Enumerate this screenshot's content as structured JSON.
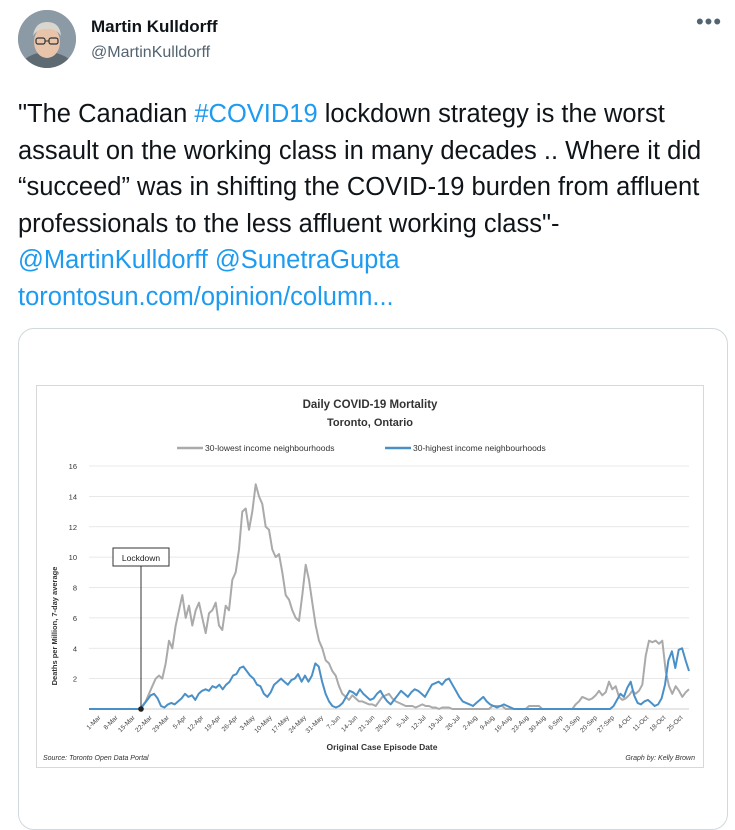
{
  "tweet": {
    "author_name": "Martin Kulldorff",
    "author_handle": "@MartinKulldorff",
    "more_icon": "more-horizontal-icon",
    "text": {
      "p1": "\"The Canadian ",
      "hashtag": "#COVID19",
      "p2": " lockdown strategy is the worst assault on the working class in many decades .. Where it did “succeed” was in shifting the COVID-19 burden from affluent professionals to the less affluent working class\"-",
      "mention1": "@MartinKulldorff",
      "mention2": "@SunetraGupta",
      "link": "torontosun.com/opinion/column..."
    }
  },
  "colors": {
    "link": "#1d9bf0",
    "lowest_series": "#aaaaaa",
    "highest_series": "#4a90c8"
  },
  "chart_data": {
    "type": "line",
    "title": "Daily COVID-19 Mortality",
    "subtitle": "Toronto, Ontario",
    "xlabel": "Original Case Episode Date",
    "ylabel": "Deaths per Million, 7-day average",
    "ylim": [
      0,
      16
    ],
    "yticks": [
      "16",
      "14",
      "12",
      "10",
      "8",
      "6",
      "4",
      "2"
    ],
    "xticks": [
      "1-Mar",
      "8-Mar",
      "15-Mar",
      "22-Mar",
      "29-Mar",
      "5-Apr",
      "12-Apr",
      "19-Apr",
      "26-Apr",
      "3-May",
      "10-May",
      "17-May",
      "24-May",
      "31-May",
      "7-Jun",
      "14-Jun",
      "21-Jun",
      "28-Jun",
      "5-Jul",
      "12-Jul",
      "19-Jul",
      "26-Jul",
      "2-Aug",
      "9-Aug",
      "16-Aug",
      "23-Aug",
      "30-Aug",
      "6-Sep",
      "13-Sep",
      "20-Sep",
      "27-Sep",
      "4-Oct",
      "11-Oct",
      "18-Oct",
      "25-Oct"
    ],
    "grid": true,
    "legend_position": "top",
    "series": [
      {
        "name": "30-lowest income neighbourhoods",
        "values": [
          0,
          0,
          0,
          0,
          0,
          0,
          0,
          0,
          0,
          0,
          0,
          0,
          0,
          0,
          0,
          0,
          0.2,
          0.5,
          1,
          1.5,
          2,
          2.2,
          2,
          3,
          4.5,
          4,
          5.5,
          6.5,
          7.5,
          6,
          6.8,
          5.5,
          6.5,
          7,
          6,
          5,
          6.3,
          6.5,
          7,
          5.5,
          5.2,
          6.8,
          6.5,
          8.5,
          9,
          10.5,
          13,
          13.2,
          11.8,
          13,
          14.8,
          14,
          13.5,
          12,
          11.8,
          10.5,
          10,
          10.2,
          9,
          7.5,
          7.2,
          6.5,
          6,
          5.8,
          7.5,
          9.5,
          8.5,
          7,
          5.5,
          4.5,
          4,
          3.2,
          3,
          2.5,
          2.2,
          1.5,
          1,
          0.8,
          0.6,
          0.9,
          0.7,
          0.5,
          0.5,
          0.4,
          0.3,
          0.3,
          0.2,
          0.5,
          0.8,
          0.9,
          1,
          0.7,
          0.5,
          0.4,
          0.3,
          0.2,
          0.2,
          0.2,
          0.1,
          0.2,
          0.3,
          0.2,
          0.2,
          0.1,
          0.1,
          0,
          0.1,
          0.1,
          0.1,
          0,
          0,
          0,
          0,
          0,
          0,
          0,
          0,
          0,
          0,
          0,
          0,
          0.2,
          0.2,
          0.2,
          0.2,
          0,
          0,
          0,
          0,
          0,
          0,
          0,
          0.2,
          0.2,
          0.2,
          0.2,
          0,
          0,
          0,
          0,
          0,
          0,
          0,
          0,
          0,
          0,
          0.3,
          0.5,
          0.8,
          0.7,
          0.6,
          0.7,
          0.9,
          1.2,
          0.9,
          1.1,
          1.8,
          1.3,
          1.5,
          0.8,
          0.6,
          0.7,
          0.9,
          1.2,
          1,
          1.2,
          1.6,
          3.5,
          4.5,
          4.4,
          4.5,
          4.3,
          4.5,
          2.5,
          1.5,
          1,
          1.5,
          1.2,
          0.8,
          1.1,
          1.3
        ]
      },
      {
        "name": "30-highest income neighbourhoods",
        "values": [
          0,
          0,
          0,
          0,
          0,
          0,
          0,
          0,
          0,
          0,
          0,
          0,
          0,
          0,
          0,
          0,
          0.3,
          0.6,
          0.9,
          1,
          0.7,
          0.2,
          0.1,
          0.3,
          0.4,
          0.3,
          0.5,
          0.7,
          1,
          0.8,
          0.9,
          0.6,
          1,
          1.2,
          1.3,
          1.2,
          1.5,
          1.4,
          1.6,
          1.3,
          1.6,
          1.8,
          2.2,
          2.3,
          2.7,
          2.8,
          2.5,
          2.2,
          2,
          1.6,
          1.5,
          1,
          0.8,
          1.1,
          1.6,
          1.8,
          2,
          1.8,
          1.6,
          1.9,
          2,
          2.3,
          1.8,
          2.2,
          1.8,
          2.2,
          3,
          2.8,
          1.8,
          1,
          0.5,
          0.2,
          0.1,
          0.2,
          0.4,
          0.8,
          1.2,
          1.1,
          0.9,
          1.3,
          1,
          0.8,
          0.6,
          0.7,
          1,
          1.2,
          0.8,
          0.5,
          0.3,
          0.6,
          0.9,
          1.2,
          1,
          0.8,
          1.1,
          1.3,
          1.2,
          1,
          0.8,
          1.2,
          1.6,
          1.7,
          1.8,
          1.6,
          1.9,
          2,
          1.6,
          1.2,
          0.8,
          0.5,
          0.4,
          0.3,
          0.2,
          0.4,
          0.6,
          0.8,
          0.5,
          0.3,
          0.2,
          0.1,
          0.2,
          0.3,
          0.2,
          0.1,
          0,
          0,
          0,
          0,
          0,
          0,
          0,
          0,
          0,
          0,
          0,
          0,
          0,
          0,
          0,
          0,
          0,
          0,
          0,
          0,
          0,
          0,
          0,
          0,
          0,
          0,
          0,
          0,
          0,
          0.2,
          0.6,
          1,
          0.8,
          1.4,
          1.8,
          0.9,
          0.4,
          0.3,
          0.5,
          0.6,
          0.4,
          0.2,
          0.3,
          0.7,
          1.6,
          3.2,
          3.8,
          2.7,
          3.9,
          4,
          3.2,
          2.5
        ]
      }
    ],
    "annotation": "Lockdown",
    "source": "Source: Toronto Open Data Portal",
    "credit": "Graph by: Kelly Brown"
  }
}
